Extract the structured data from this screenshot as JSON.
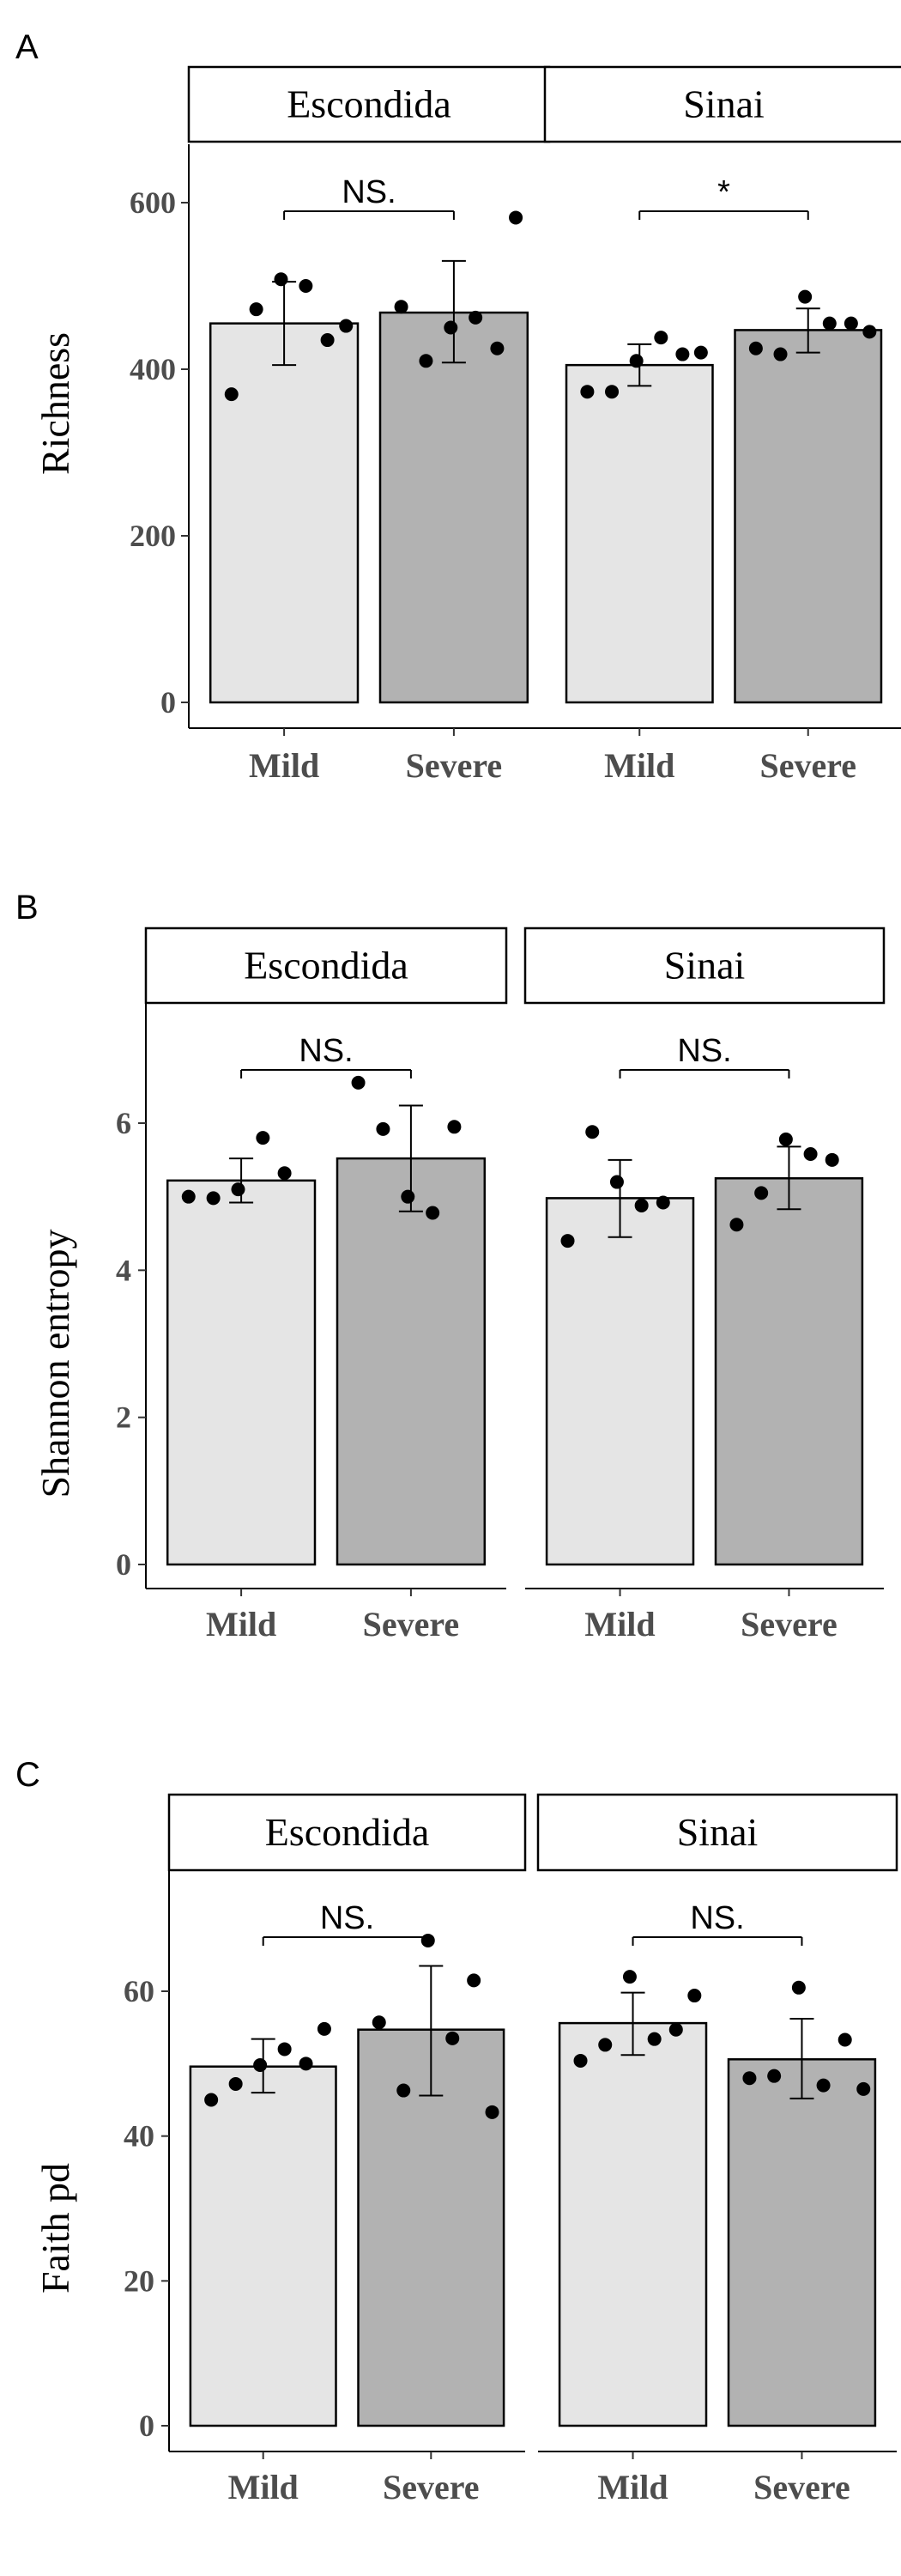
{
  "chart_data": [
    {
      "type": "bar",
      "panel_label": "A",
      "ylabel": "Richness",
      "ylim": [
        0,
        600
      ],
      "yticks": [
        0,
        200,
        400,
        600
      ],
      "categories": [
        "Mild",
        "Severe"
      ],
      "facets": [
        {
          "name": "Escondida",
          "values": [
            455,
            468
          ],
          "errors": [
            [
              405,
              505
            ],
            [
              408,
              530
            ]
          ],
          "points": [
            [
              370,
              472,
              508,
              500,
              435,
              452
            ],
            [
              475,
              410,
              450,
              462,
              425,
              582
            ]
          ],
          "significance": "NS."
        },
        {
          "name": "Sinai",
          "values": [
            405,
            447
          ],
          "errors": [
            [
              380,
              430
            ],
            [
              420,
              473
            ]
          ],
          "points": [
            [
              373,
              373,
              410,
              438,
              418,
              420
            ],
            [
              425,
              418,
              487,
              455,
              455,
              445
            ]
          ],
          "significance": "*"
        }
      ]
    },
    {
      "type": "bar",
      "panel_label": "B",
      "ylabel": "Shannon entropy",
      "ylim": [
        0,
        7.5
      ],
      "yticks": [
        0,
        2,
        4,
        6
      ],
      "categories": [
        "Mild",
        "Severe"
      ],
      "facets": [
        {
          "name": "Escondida",
          "values": [
            5.22,
            5.52
          ],
          "errors": [
            [
              4.92,
              5.52
            ],
            [
              4.8,
              6.24
            ]
          ],
          "points": [
            [
              5.0,
              4.98,
              5.1,
              5.8,
              5.32
            ],
            [
              6.55,
              5.92,
              5.0,
              4.78,
              5.95
            ]
          ],
          "significance": "NS."
        },
        {
          "name": "Sinai",
          "values": [
            4.98,
            5.25
          ],
          "errors": [
            [
              4.45,
              5.5
            ],
            [
              4.83,
              5.68
            ]
          ],
          "points": [
            [
              4.4,
              5.88,
              5.2,
              4.88,
              4.92
            ],
            [
              4.62,
              5.05,
              5.78,
              5.58,
              5.5
            ]
          ],
          "significance": "NS."
        }
      ]
    },
    {
      "type": "bar",
      "panel_label": "C",
      "ylabel": "Faith pd",
      "ylim": [
        0,
        75
      ],
      "yticks": [
        0,
        20,
        40,
        60
      ],
      "categories": [
        "Mild",
        "Severe"
      ],
      "facets": [
        {
          "name": "Escondida",
          "values": [
            49.6,
            54.7
          ],
          "errors": [
            [
              46,
              53.4
            ],
            [
              45.6,
              63.5
            ]
          ],
          "points": [
            [
              45,
              47.2,
              49.8,
              52,
              50,
              54.8
            ],
            [
              55.7,
              46.3,
              67,
              53.5,
              61.5,
              43.3
            ]
          ],
          "significance": "NS."
        },
        {
          "name": "Sinai",
          "values": [
            55.6,
            50.6
          ],
          "errors": [
            [
              51.2,
              59.8
            ],
            [
              45.2,
              56.2
            ]
          ],
          "points": [
            [
              50.4,
              52.6,
              62,
              53.4,
              54.7,
              59.4
            ],
            [
              48,
              48.3,
              60.5,
              47,
              53.3,
              46.5
            ]
          ],
          "significance": "NS."
        }
      ]
    }
  ]
}
